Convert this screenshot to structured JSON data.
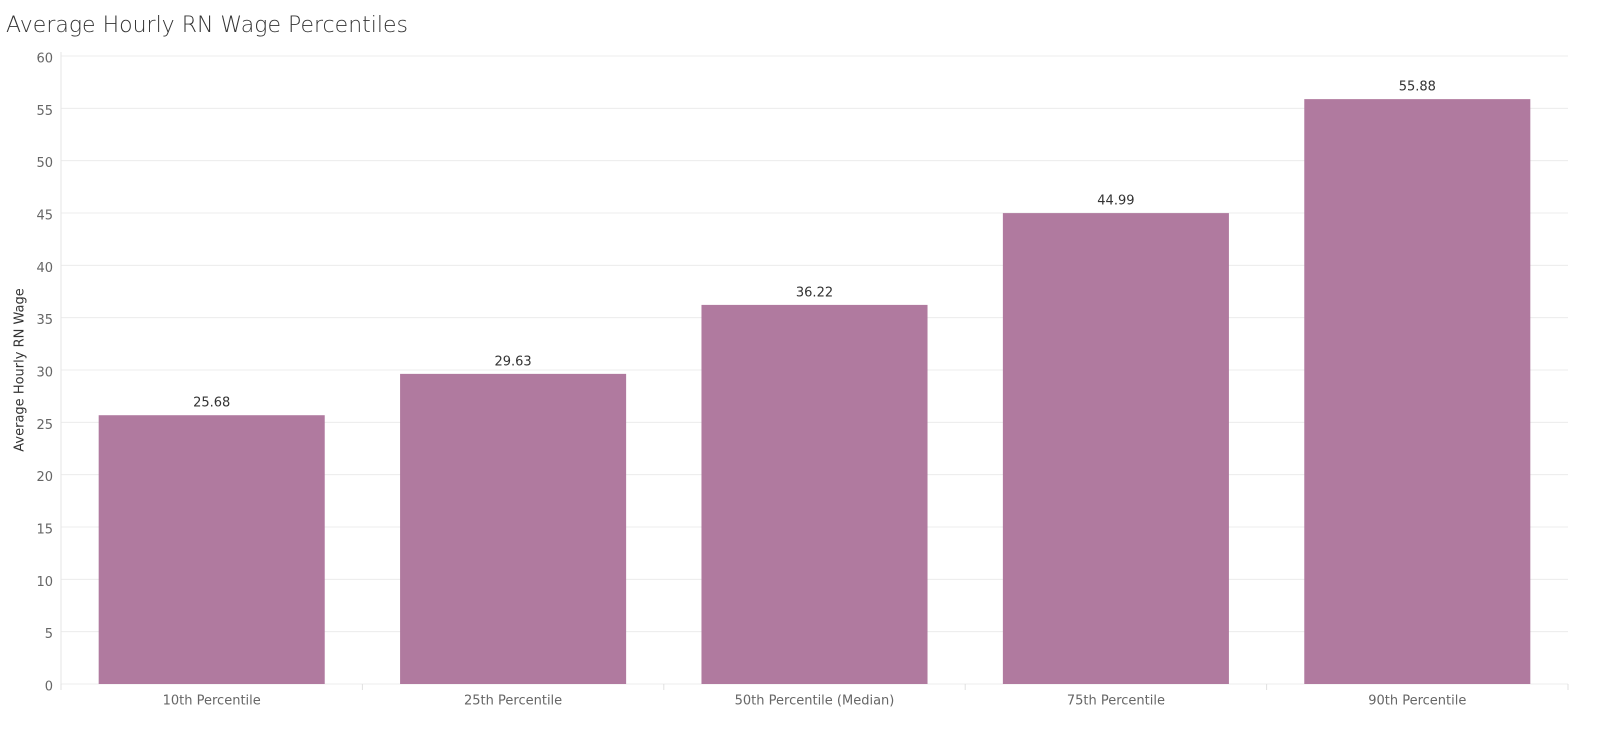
{
  "chart_data": {
    "type": "bar",
    "title": "Average Hourly RN Wage Percentiles",
    "y_label": "Average Hourly RN Wage",
    "categories": [
      "10th Percentile",
      "25th Percentile",
      "50th Percentile (Median)",
      "75th Percentile",
      "90th Percentile"
    ],
    "values": [
      25.68,
      29.63,
      36.22,
      44.99,
      55.88
    ],
    "color": "#b07a9f",
    "ylim": [
      0,
      60
    ],
    "yticks": [
      0,
      5,
      10,
      15,
      20,
      25,
      30,
      35,
      40,
      45,
      50,
      55,
      60
    ],
    "grid": true
  }
}
